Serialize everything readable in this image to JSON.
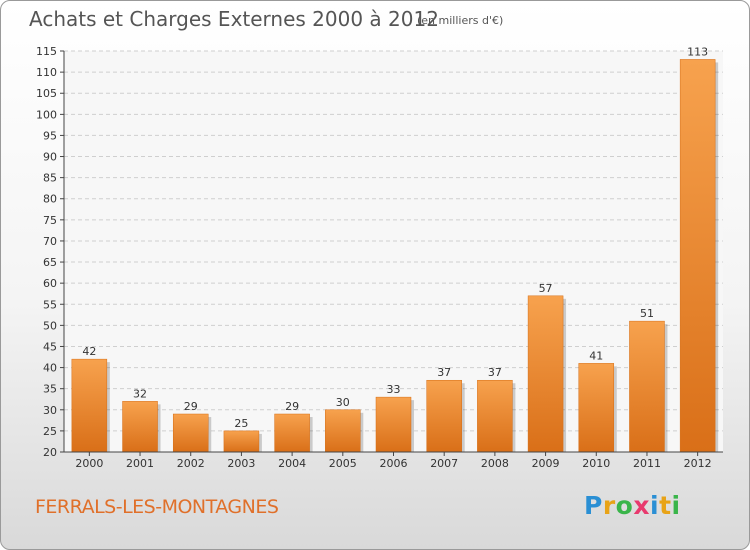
{
  "header": {
    "title": "Achats et Charges Externes 2000 à 2012",
    "subtitle": "(en milliers d'€)"
  },
  "footer": {
    "commune": "FERRALS-LES-MONTAGNES",
    "logo": {
      "letters": [
        "P",
        "r",
        "o",
        "x",
        "i",
        "t",
        "i"
      ],
      "colors": [
        "#2a8fd4",
        "#e8a317",
        "#3ab54a",
        "#e83a6e",
        "#2a8fd4",
        "#e8a317",
        "#3ab54a"
      ]
    }
  },
  "chart_data": {
    "type": "bar",
    "categories": [
      "2000",
      "2001",
      "2002",
      "2003",
      "2004",
      "2005",
      "2006",
      "2007",
      "2008",
      "2009",
      "2010",
      "2011",
      "2012"
    ],
    "values": [
      42,
      32,
      29,
      25,
      29,
      30,
      33,
      37,
      37,
      57,
      41,
      51,
      113
    ],
    "ylim": [
      20,
      115
    ],
    "yticks": [
      20,
      25,
      30,
      35,
      40,
      45,
      50,
      55,
      60,
      65,
      70,
      75,
      80,
      85,
      90,
      95,
      100,
      105,
      110,
      115
    ],
    "grid": true,
    "bar_color": "#f0882e"
  }
}
